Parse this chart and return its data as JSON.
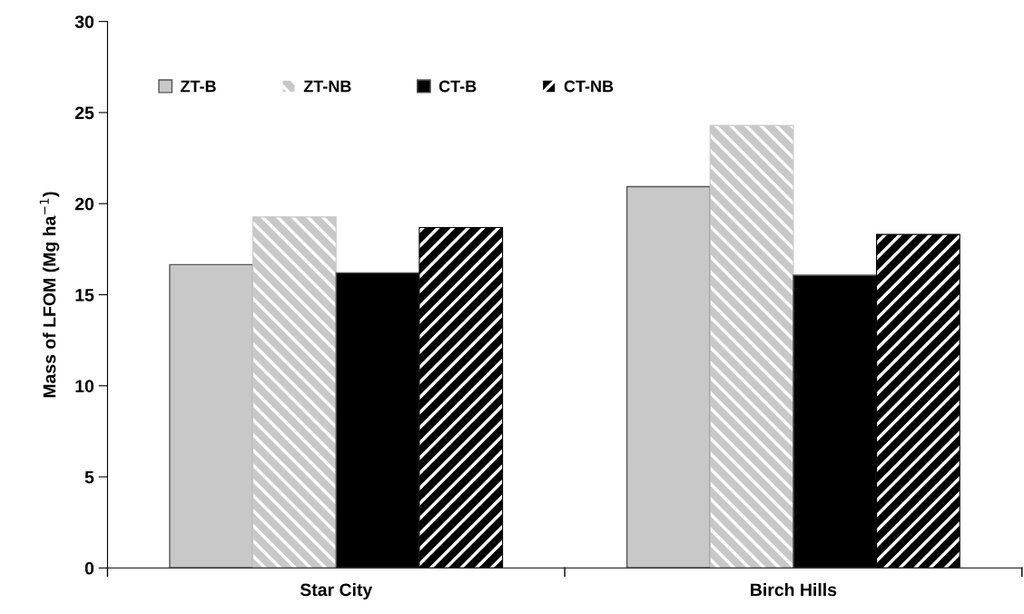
{
  "chart_data": {
    "type": "bar",
    "ylabel": "Mass of LFOM (Mg ha$^{−1}$)",
    "categories": [
      "Star City",
      "Birch Hills"
    ],
    "series": [
      {
        "name": "ZT-B",
        "color": "#c8c8c8",
        "values": [
          16.65,
          20.93
        ]
      },
      {
        "name": "ZT-NB",
        "color": "#c8c8c8",
        "values": [
          19.27,
          24.29
        ]
      },
      {
        "name": "CT-B",
        "color": "#000000",
        "values": [
          16.2,
          16.07
        ]
      },
      {
        "name": "CT-NB",
        "color": "#000000",
        "values": [
          18.69,
          18.31
        ]
      }
    ],
    "ylim": [
      0,
      30
    ],
    "yticks": [
      0,
      5,
      10,
      15,
      20,
      25,
      30
    ],
    "grid": false,
    "legend": "top left"
  }
}
